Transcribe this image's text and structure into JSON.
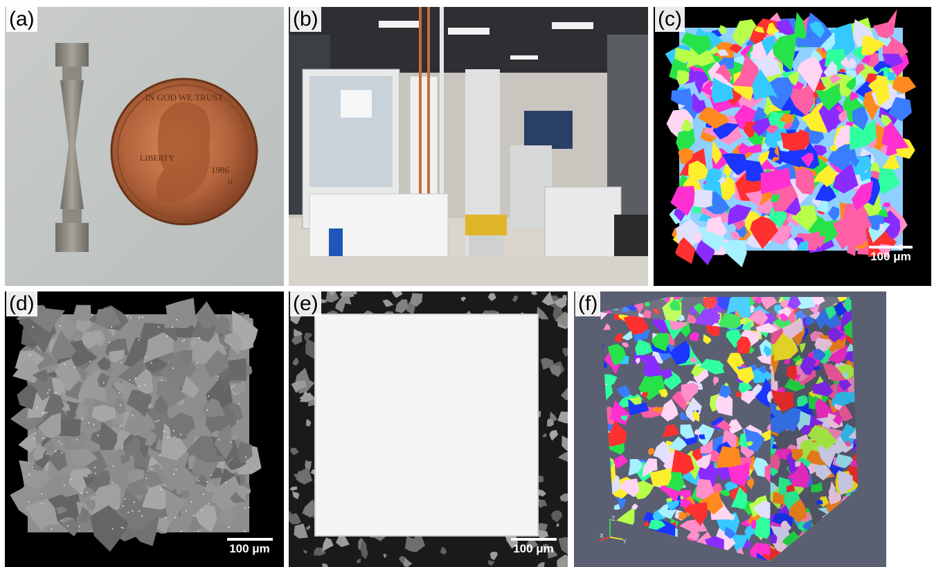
{
  "panels": {
    "a": {
      "label": "(a)"
    },
    "b": {
      "label": "(b)"
    },
    "c": {
      "label": "(c)",
      "scale_text": "100 μm"
    },
    "d": {
      "label": "(d)",
      "scale_text": "100 μm"
    },
    "e": {
      "label": "(e)",
      "scale_text": "100 μm"
    },
    "f": {
      "label": "(f)",
      "axis_labels": {
        "z": "Z",
        "x": "X",
        "y": "Y"
      }
    }
  },
  "coin": {
    "motto": "IN GOD WE TRUST",
    "word": "LIBERTY",
    "year": "1986",
    "mint": "D"
  },
  "colors": {
    "ebsd_palette": [
      "#ff2fd0",
      "#27e34a",
      "#35c9ff",
      "#ffee2b",
      "#ff3030",
      "#8a2bff",
      "#1a36ff",
      "#ff8a1f",
      "#b7ff4a",
      "#ff8ecb",
      "#e0e0ff",
      "#2fff9f",
      "#ff5fa5",
      "#a6f0ff",
      "#ffd6f4",
      "#3a7dff"
    ],
    "background_lab": "#d9d4cc",
    "blank_white": "#f5f5f5"
  }
}
